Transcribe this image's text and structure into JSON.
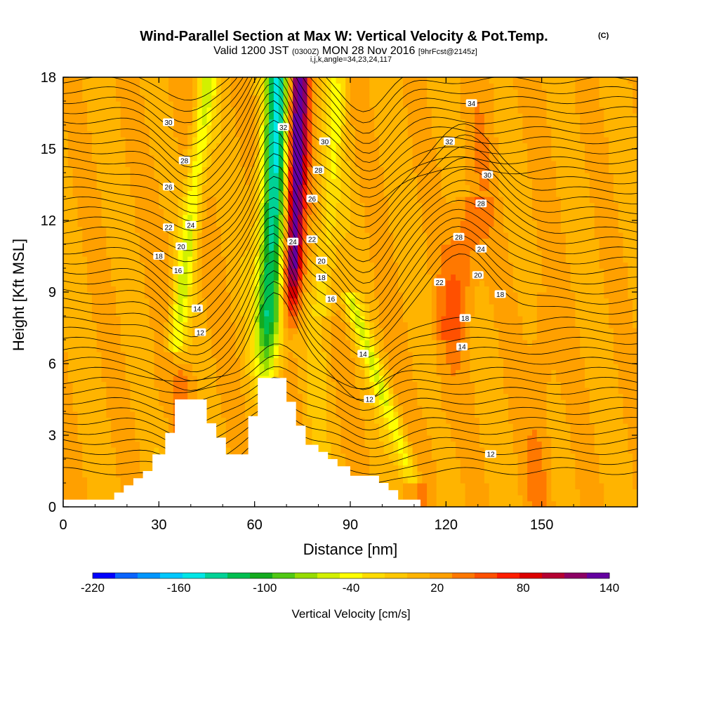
{
  "chart_data": {
    "type": "heatmap",
    "title": "Wind-Parallel Section at Max W: Vertical Velocity & Pot.Temp.",
    "title_mark": "(C)",
    "subtitle_main_a": "Valid 1200 JST",
    "subtitle_small_a": "(0300Z)",
    "subtitle_main_b": "MON 28 Nov 2016",
    "subtitle_small_b": "[9hrFcst@2145z]",
    "subtitle_2": "i,j,k,angle=34,23,24,117",
    "xlabel": "Distance [nm]",
    "ylabel": "Height [Kft MSL]",
    "xlim": [
      0,
      180
    ],
    "ylim": [
      0,
      18
    ],
    "x_ticks": [
      0,
      30,
      60,
      90,
      120,
      150
    ],
    "y_ticks": [
      0,
      3,
      6,
      9,
      12,
      15,
      18
    ],
    "colorbar_label": "Vertical Velocity [cm/s]",
    "colorbar_ticks": [
      "-220",
      "-160",
      "-100",
      "-40",
      "20",
      "80",
      "140"
    ],
    "colorbar_bins": [
      -220,
      140
    ],
    "colorbar_colors": [
      "#0000ff",
      "#0a64ff",
      "#0096ff",
      "#00c8ff",
      "#00e6e6",
      "#00d296",
      "#00be50",
      "#14aa1e",
      "#50c814",
      "#96dc00",
      "#d2f000",
      "#ffff00",
      "#ffdc00",
      "#ffc800",
      "#ffb400",
      "#ffa000",
      "#ff7800",
      "#ff5000",
      "#ff1e00",
      "#dc0000",
      "#b40032",
      "#8c0064",
      "#6400a0"
    ],
    "terrain_kft": [
      [
        0,
        0.3
      ],
      [
        16,
        0.3
      ],
      [
        16,
        0.6
      ],
      [
        19,
        0.6
      ],
      [
        19,
        0.9
      ],
      [
        22,
        0.9
      ],
      [
        22,
        1.2
      ],
      [
        25,
        1.2
      ],
      [
        25,
        1.5
      ],
      [
        28,
        1.5
      ],
      [
        28,
        2.2
      ],
      [
        32,
        2.2
      ],
      [
        32,
        3.1
      ],
      [
        35,
        3.1
      ],
      [
        35,
        4.5
      ],
      [
        45,
        4.5
      ],
      [
        45,
        3.5
      ],
      [
        48,
        3.5
      ],
      [
        48,
        2.9
      ],
      [
        51,
        2.9
      ],
      [
        51,
        2.2
      ],
      [
        58,
        2.2
      ],
      [
        58,
        3.8
      ],
      [
        61,
        3.8
      ],
      [
        61,
        5.4
      ],
      [
        70,
        5.4
      ],
      [
        70,
        4.4
      ],
      [
        73,
        4.4
      ],
      [
        73,
        3.4
      ],
      [
        76,
        3.4
      ],
      [
        76,
        2.6
      ],
      [
        80,
        2.6
      ],
      [
        80,
        2.3
      ],
      [
        83,
        2.3
      ],
      [
        83,
        2.0
      ],
      [
        86,
        2.0
      ],
      [
        86,
        1.7
      ],
      [
        90,
        1.7
      ],
      [
        90,
        1.3
      ],
      [
        99,
        1.3
      ],
      [
        99,
        1.0
      ],
      [
        102,
        1.0
      ],
      [
        102,
        0.7
      ],
      [
        105,
        0.7
      ],
      [
        105,
        0.3
      ],
      [
        112,
        0.3
      ],
      [
        112,
        0.0
      ],
      [
        180,
        0.0
      ]
    ],
    "theta_contour_labels": [
      {
        "text": "34",
        "x": 128,
        "y": 16.9
      },
      {
        "text": "32",
        "x": 121,
        "y": 15.3
      },
      {
        "text": "30",
        "x": 133,
        "y": 13.9
      },
      {
        "text": "28",
        "x": 131,
        "y": 12.7
      },
      {
        "text": "28",
        "x": 124,
        "y": 11.3
      },
      {
        "text": "24",
        "x": 131,
        "y": 10.8
      },
      {
        "text": "20",
        "x": 130,
        "y": 9.7
      },
      {
        "text": "22",
        "x": 118,
        "y": 9.4
      },
      {
        "text": "18",
        "x": 137,
        "y": 8.9
      },
      {
        "text": "18",
        "x": 126,
        "y": 7.9
      },
      {
        "text": "14",
        "x": 125,
        "y": 6.7
      },
      {
        "text": "12",
        "x": 134,
        "y": 2.2
      },
      {
        "text": "30",
        "x": 33,
        "y": 16.1
      },
      {
        "text": "28",
        "x": 38,
        "y": 14.5
      },
      {
        "text": "26",
        "x": 33,
        "y": 13.4
      },
      {
        "text": "22",
        "x": 33,
        "y": 11.7
      },
      {
        "text": "24",
        "x": 40,
        "y": 11.8
      },
      {
        "text": "20",
        "x": 37,
        "y": 10.9
      },
      {
        "text": "18",
        "x": 30,
        "y": 10.5
      },
      {
        "text": "16",
        "x": 36,
        "y": 9.9
      },
      {
        "text": "14",
        "x": 42,
        "y": 8.3
      },
      {
        "text": "12",
        "x": 43,
        "y": 7.3
      },
      {
        "text": "32",
        "x": 69,
        "y": 15.9
      },
      {
        "text": "30",
        "x": 82,
        "y": 15.3
      },
      {
        "text": "28",
        "x": 80,
        "y": 14.1
      },
      {
        "text": "26",
        "x": 78,
        "y": 12.9
      },
      {
        "text": "24",
        "x": 72,
        "y": 11.1
      },
      {
        "text": "22",
        "x": 78,
        "y": 11.2
      },
      {
        "text": "20",
        "x": 81,
        "y": 10.3
      },
      {
        "text": "18",
        "x": 81,
        "y": 9.6
      },
      {
        "text": "16",
        "x": 84,
        "y": 8.7
      },
      {
        "text": "14",
        "x": 94,
        "y": 6.4
      },
      {
        "text": "12",
        "x": 96,
        "y": 4.5
      }
    ]
  }
}
